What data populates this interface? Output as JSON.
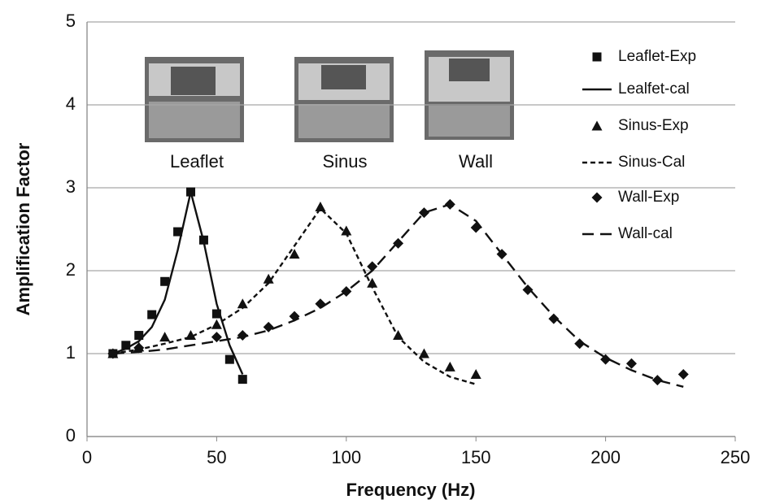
{
  "chart_data": {
    "type": "line",
    "x_label": "Frequency (Hz)",
    "y_label": "Amplification Factor",
    "xlim": [
      0,
      250
    ],
    "xticks": [
      0,
      50,
      100,
      150,
      200,
      250
    ],
    "ylim": [
      0,
      5
    ],
    "yticks": [
      0,
      1,
      2,
      3,
      4,
      5
    ],
    "grid": true,
    "insets": [
      "Leaflet",
      "Sinus",
      "Wall"
    ],
    "series": [
      {
        "name": "Leaflet-Exp",
        "color": "#111111",
        "marker": "square",
        "x": [
          10,
          15,
          20,
          25,
          30,
          35,
          40,
          45,
          50,
          55,
          60
        ],
        "values": [
          1.0,
          1.1,
          1.22,
          1.47,
          1.87,
          2.47,
          2.95,
          2.37,
          1.48,
          0.93,
          0.69
        ]
      },
      {
        "name": "Lealfet-cal",
        "color": "#111111",
        "dash": "solid",
        "x": [
          10,
          15,
          20,
          25,
          30,
          35,
          40,
          45,
          50,
          55,
          60
        ],
        "values": [
          1.0,
          1.06,
          1.15,
          1.32,
          1.65,
          2.25,
          2.95,
          2.35,
          1.6,
          1.1,
          0.75
        ]
      },
      {
        "name": "Sinus-Exp",
        "color": "#111111",
        "marker": "triangle",
        "x": [
          10,
          20,
          30,
          40,
          50,
          60,
          70,
          80,
          90,
          100,
          110,
          120,
          130,
          140,
          150
        ],
        "values": [
          1.0,
          1.08,
          1.2,
          1.22,
          1.35,
          1.6,
          1.9,
          2.2,
          2.77,
          2.48,
          1.85,
          1.22,
          1.0,
          0.84,
          0.75
        ]
      },
      {
        "name": "Sinus-Cal",
        "color": "#111111",
        "dash": "short",
        "x": [
          10,
          20,
          30,
          40,
          50,
          60,
          70,
          80,
          90,
          100,
          110,
          120,
          130,
          140,
          150
        ],
        "values": [
          1.0,
          1.05,
          1.12,
          1.2,
          1.35,
          1.55,
          1.85,
          2.3,
          2.75,
          2.45,
          1.8,
          1.2,
          0.9,
          0.72,
          0.63
        ]
      },
      {
        "name": "Wall-Exp",
        "color": "#111111",
        "marker": "diamond",
        "x": [
          10,
          20,
          50,
          60,
          70,
          80,
          90,
          100,
          110,
          120,
          130,
          140,
          150,
          160,
          170,
          180,
          190,
          200,
          210,
          220,
          230
        ],
        "values": [
          1.0,
          1.07,
          1.2,
          1.22,
          1.32,
          1.45,
          1.6,
          1.75,
          2.05,
          2.33,
          2.7,
          2.8,
          2.52,
          2.2,
          1.77,
          1.42,
          1.12,
          0.93,
          0.88,
          0.68,
          0.75
        ]
      },
      {
        "name": "Wall-cal",
        "color": "#111111",
        "dash": "long",
        "x": [
          10,
          20,
          30,
          40,
          50,
          60,
          70,
          80,
          90,
          100,
          110,
          120,
          130,
          140,
          150,
          160,
          170,
          180,
          190,
          200,
          210,
          220,
          230
        ],
        "values": [
          1.0,
          1.02,
          1.05,
          1.1,
          1.15,
          1.2,
          1.28,
          1.4,
          1.55,
          1.75,
          2.0,
          2.35,
          2.7,
          2.8,
          2.6,
          2.2,
          1.8,
          1.45,
          1.15,
          0.95,
          0.8,
          0.68,
          0.6
        ]
      }
    ]
  }
}
